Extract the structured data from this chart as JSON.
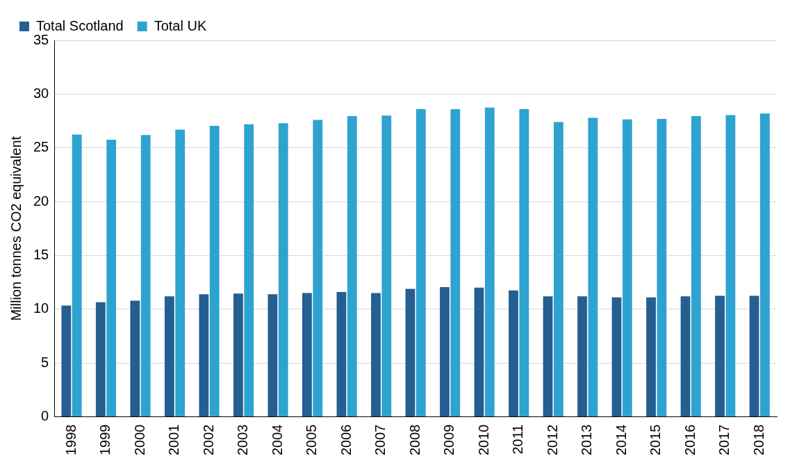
{
  "chart_data": {
    "type": "bar",
    "ylabel": "Million tonnes CO2 equivalent",
    "categories": [
      "1998",
      "1999",
      "2000",
      "2001",
      "2002",
      "2003",
      "2004",
      "2005",
      "2006",
      "2007",
      "2008",
      "2009",
      "2010",
      "2011",
      "2012",
      "2013",
      "2014",
      "2015",
      "2016",
      "2017",
      "2018"
    ],
    "series": [
      {
        "name": "Total Scotland",
        "color": "#255e91",
        "values": [
          10.35,
          10.65,
          10.8,
          11.2,
          11.4,
          11.45,
          11.4,
          11.5,
          11.6,
          11.5,
          11.9,
          12.05,
          12.0,
          11.75,
          11.2,
          11.2,
          11.1,
          11.1,
          11.2,
          11.25,
          11.25
        ]
      },
      {
        "name": "Total UK",
        "color": "#2ea3d0",
        "values": [
          26.25,
          25.75,
          26.2,
          26.7,
          27.05,
          27.2,
          27.3,
          27.6,
          27.95,
          28.0,
          28.6,
          28.6,
          28.75,
          28.6,
          27.4,
          27.8,
          27.65,
          27.7,
          27.95,
          28.05,
          28.2
        ]
      }
    ],
    "ylim": [
      0,
      35
    ],
    "yticks": [
      0,
      5,
      10,
      15,
      20,
      25,
      30,
      35
    ],
    "grid": "y",
    "legend": "top left"
  }
}
